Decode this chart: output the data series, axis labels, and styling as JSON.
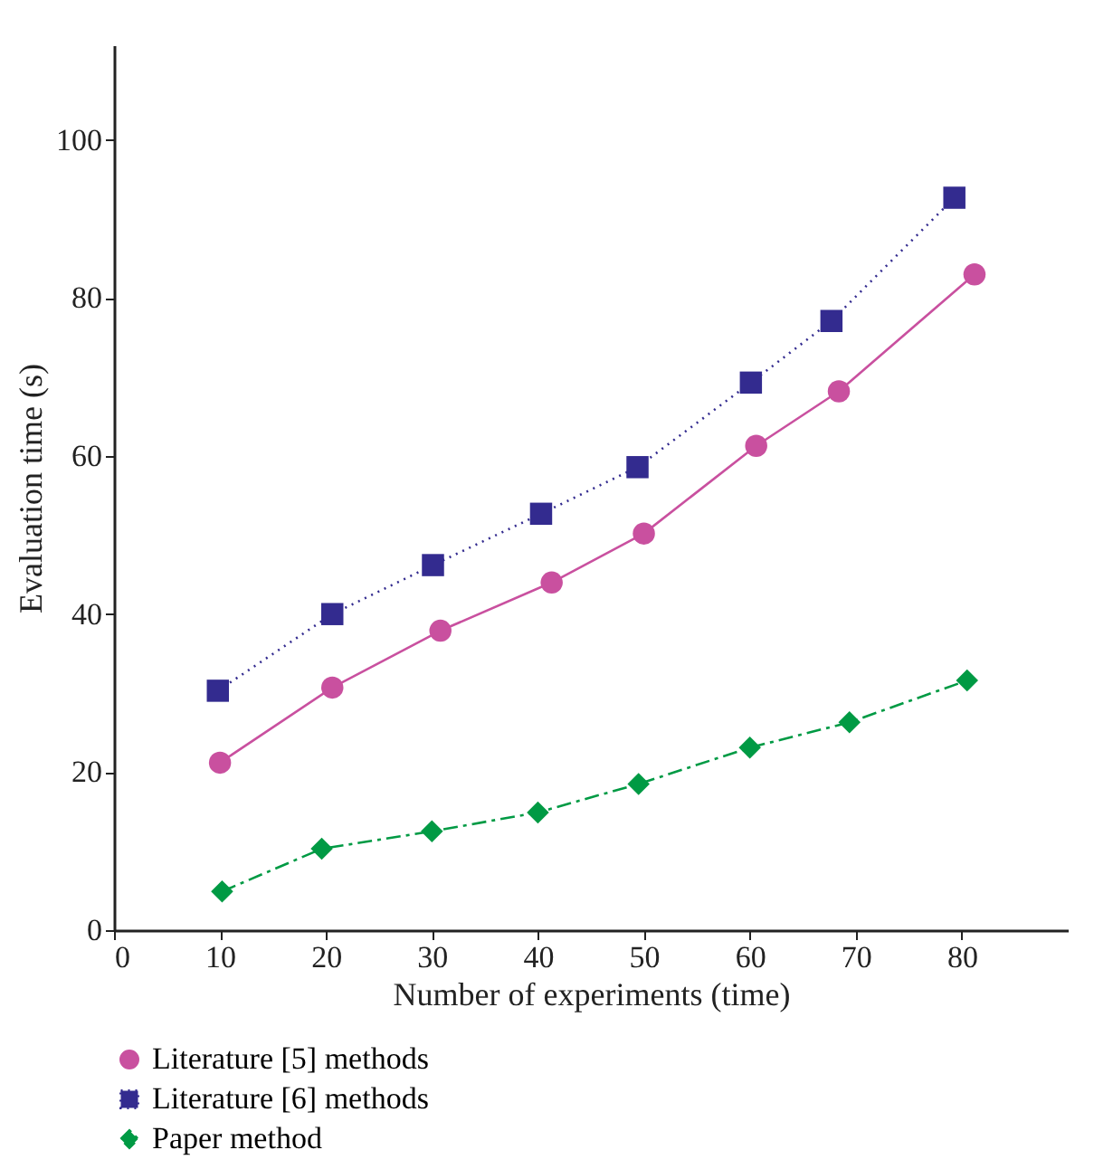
{
  "chart_data": {
    "type": "line",
    "xlabel": "Number of experiments (time)",
    "ylabel": "Evaluation time (s)",
    "xlim": [
      0,
      90
    ],
    "ylim": [
      0,
      112
    ],
    "xticks": [
      0,
      10,
      20,
      30,
      40,
      50,
      60,
      70,
      80
    ],
    "yticks": [
      0,
      20,
      40,
      60,
      80,
      100
    ],
    "grid": false,
    "legend": "bottom left",
    "series": [
      {
        "name": "Literature [5] methods",
        "color": "#c9509f",
        "marker": "circle",
        "line_style": "solid",
        "x": [
          10,
          20.6,
          30.8,
          41.3,
          50,
          60.6,
          68.4,
          81.2
        ],
        "values": [
          21.2,
          30.7,
          37.9,
          44.0,
          50.2,
          61.3,
          68.2,
          83.0
        ]
      },
      {
        "name": "Literature [6] methods",
        "color": "#332b8f",
        "marker": "square",
        "line_style": "dotted",
        "x": [
          9.8,
          20.6,
          30.1,
          40.3,
          49.4,
          60.1,
          67.7,
          79.3
        ],
        "values": [
          30.3,
          40.0,
          46.2,
          52.7,
          58.6,
          69.3,
          77.1,
          92.7
        ]
      },
      {
        "name": "Paper method",
        "color": "#009a44",
        "marker": "diamond",
        "line_style": "dashed",
        "x": [
          10.2,
          19.6,
          30,
          40,
          49.5,
          60,
          69.4,
          80.5
        ],
        "values": [
          4.9,
          10.3,
          12.5,
          14.9,
          18.5,
          23.1,
          26.3,
          31.6
        ]
      }
    ]
  }
}
